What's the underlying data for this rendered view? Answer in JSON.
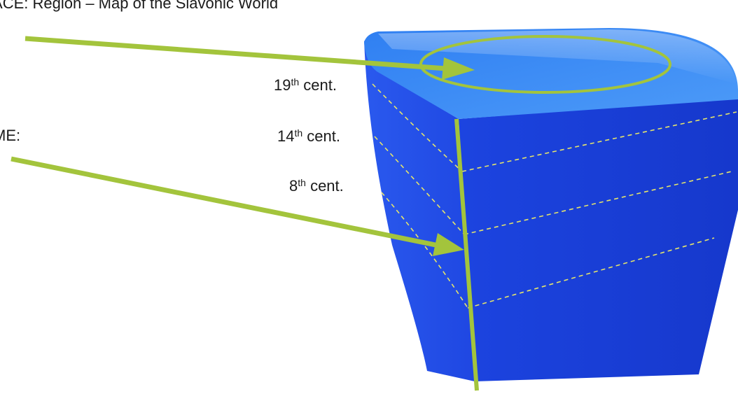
{
  "labels": {
    "space": "PACE:  Region – Map of the Slavonic World",
    "time": "ME:",
    "centuries": [
      {
        "num": "19",
        "suffix": "th",
        "word": "cent."
      },
      {
        "num": "14",
        "suffix": "th",
        "word": "cent."
      },
      {
        "num": "8",
        "suffix": "th",
        "word": "cent."
      }
    ]
  },
  "colors": {
    "cube_top": "#3e8ef7",
    "cube_front": "#1a3fd8",
    "cube_left": "#2a55e8",
    "accent_green": "#a3c43c",
    "dash_yellow": "#e6e56a",
    "text": "#1a1a1a"
  }
}
